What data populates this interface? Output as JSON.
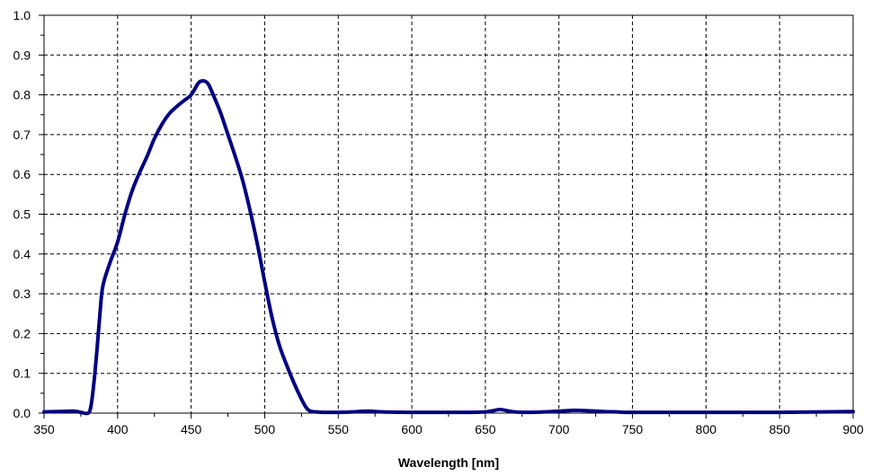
{
  "chart_data": {
    "type": "line",
    "title": "",
    "xlabel": "Wavelength  [nm]",
    "ylabel": "",
    "xlim": [
      350,
      900
    ],
    "ylim": [
      0,
      1.0
    ],
    "x_ticks": [
      350,
      400,
      450,
      500,
      550,
      600,
      650,
      700,
      750,
      800,
      850,
      900
    ],
    "x_tick_labels": [
      "350",
      "400",
      "450",
      "500",
      "550",
      "600",
      "650",
      "700",
      "750",
      "800",
      "850",
      "900"
    ],
    "y_ticks": [
      0,
      0.1,
      0.2,
      0.3,
      0.4,
      0.5,
      0.6,
      0.7,
      0.8,
      0.9,
      1.0
    ],
    "y_tick_labels": [
      "0.0",
      "0.1",
      "0.2",
      "0.3",
      "0.4",
      "0.5",
      "0.6",
      "0.7",
      "0.8",
      "0.9",
      "1.0"
    ],
    "grid": true,
    "legend": "none",
    "line_color": "#000080",
    "series": [
      {
        "x": [
          350,
          360,
          370,
          375,
          380,
          382,
          384,
          386,
          388,
          390,
          395,
          400,
          405,
          410,
          415,
          420,
          425,
          430,
          435,
          440,
          445,
          450,
          455,
          458,
          460,
          462,
          465,
          470,
          475,
          480,
          485,
          490,
          495,
          500,
          505,
          510,
          515,
          520,
          525,
          528,
          530,
          532,
          535,
          540,
          550,
          560,
          570,
          580,
          600,
          620,
          640,
          650,
          655,
          660,
          665,
          670,
          680,
          690,
          700,
          710,
          720,
          730,
          740,
          750,
          800,
          850,
          880,
          900
        ],
        "y": [
          0.003,
          0.004,
          0.005,
          0.002,
          0.0,
          0.02,
          0.08,
          0.16,
          0.25,
          0.32,
          0.38,
          0.43,
          0.5,
          0.56,
          0.605,
          0.645,
          0.69,
          0.725,
          0.752,
          0.77,
          0.785,
          0.8,
          0.83,
          0.835,
          0.833,
          0.825,
          0.8,
          0.755,
          0.7,
          0.645,
          0.585,
          0.51,
          0.425,
          0.33,
          0.24,
          0.17,
          0.12,
          0.075,
          0.035,
          0.015,
          0.007,
          0.004,
          0.003,
          0.002,
          0.002,
          0.003,
          0.005,
          0.003,
          0.002,
          0.002,
          0.002,
          0.003,
          0.006,
          0.009,
          0.006,
          0.003,
          0.002,
          0.003,
          0.005,
          0.007,
          0.006,
          0.004,
          0.003,
          0.002,
          0.002,
          0.002,
          0.003,
          0.004
        ]
      }
    ]
  }
}
